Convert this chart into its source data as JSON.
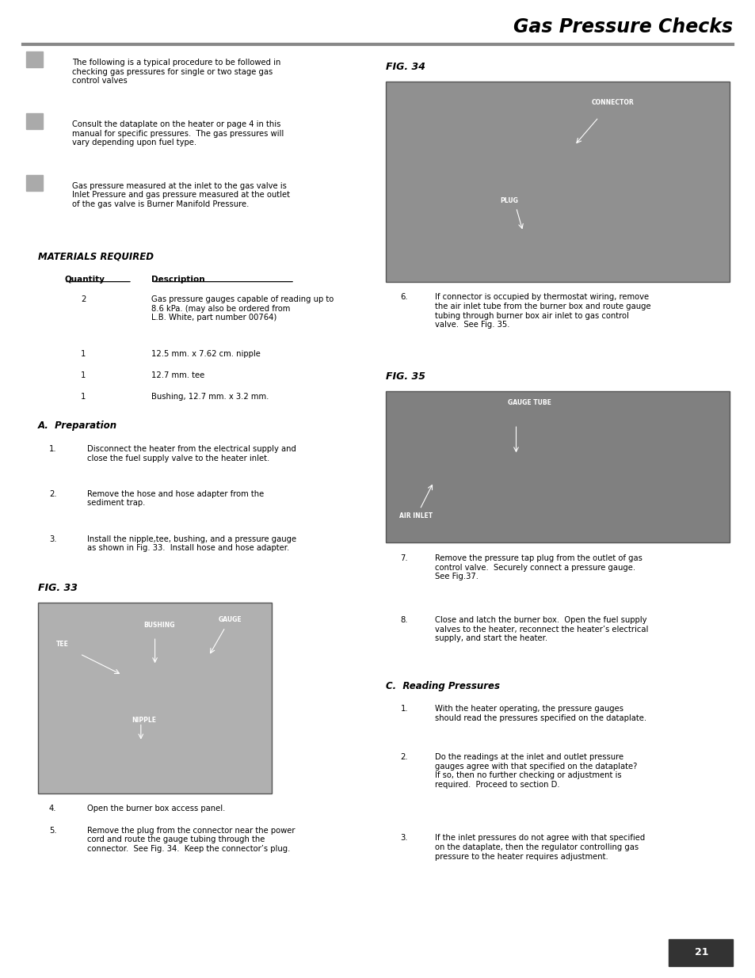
{
  "title": "Gas Pressure Checks",
  "page_number": "21",
  "bg_color": "#ffffff",
  "header_line_color": "#888888",
  "bullets": [
    "The following is a typical procedure to be followed in\nchecking gas pressures for single or two stage gas\ncontrol valves",
    "Consult the dataplate on the heater or page 4 in this\nmanual for specific pressures.  The gas pressures will\nvary depending upon fuel type.",
    "Gas pressure measured at the inlet to the gas valve is\nInlet Pressure and gas pressure measured at the outlet\nof the gas valve is Burner Manifold Pressure."
  ],
  "materials_title": "MATERIALS REQUIRED",
  "materials_headers": [
    "Quantity",
    "Description"
  ],
  "materials_rows": [
    [
      "2",
      "Gas pressure gauges capable of reading up to\n8.6 kPa. (may also be ordered from\nL.B. White, part number 00764)"
    ],
    [
      "1",
      "12.5 mm. x 7.62 cm. nipple"
    ],
    [
      "1",
      "12.7 mm. tee"
    ],
    [
      "1",
      "Bushing, 12.7 mm. x 3.2 mm."
    ]
  ],
  "prep_title": "A.  Preparation",
  "prep_steps": [
    "Disconnect the heater from the electrical supply and\nclose the fuel supply valve to the heater inlet.",
    "Remove the hose and hose adapter from the\nsediment trap.",
    "Install the nipple,tee, bushing, and a pressure gauge\nas shown in Fig. 33.  Install hose and hose adapter."
  ],
  "fig33_title": "FIG. 33",
  "fig34_title": "FIG. 34",
  "fig35_title": "FIG. 35",
  "step4": "Open the burner box access panel.",
  "step5": "Remove the plug from the connector near the power\ncord and route the gauge tubing through the\nconnector.  See Fig. 34.  Keep the connector’s plug.",
  "step6": "If connector is occupied by thermostat wiring, remove\nthe air inlet tube from the burner box and route gauge\ntubing through burner box air inlet to gas control\nvalve.  See Fig. 35.",
  "step7": "Remove the pressure tap plug from the outlet of gas\ncontrol valve.  Securely connect a pressure gauge.\nSee Fig.37.",
  "step8": "Close and latch the burner box.  Open the fuel supply\nvalves to the heater, reconnect the heater’s electrical\nsupply, and start the heater.",
  "reading_title": "C.  Reading Pressures",
  "reading_steps": [
    "With the heater operating, the pressure gauges\nshould read the pressures specified on the dataplate.",
    "Do the readings at the inlet and outlet pressure\ngauges agree with that specified on the dataplate?\nIf so, then no further checking or adjustment is\nrequired.  Proceed to section D.",
    "If the inlet pressures do not agree with that specified\non the dataplate, then the regulator controlling gas\npressure to the heater requires adjustment."
  ]
}
